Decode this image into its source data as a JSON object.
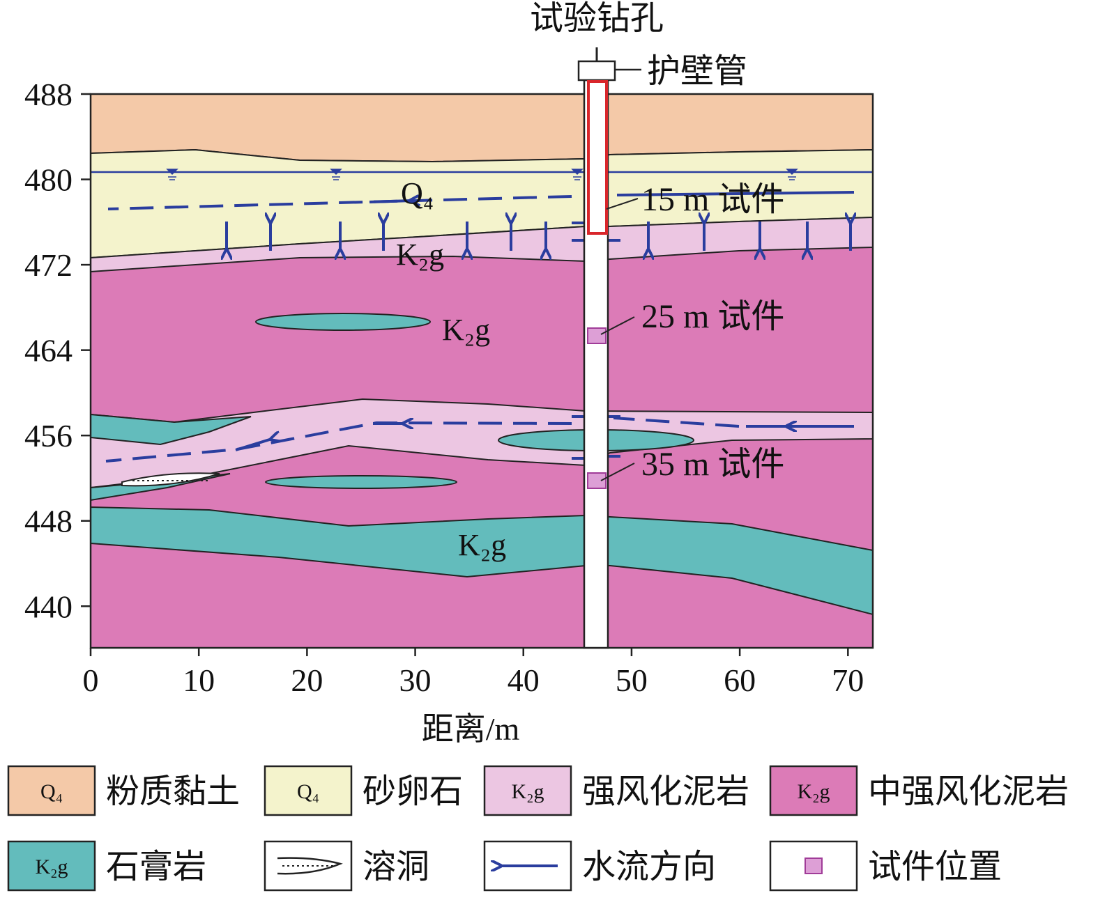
{
  "axes": {
    "xlim": [
      0,
      72.3
    ],
    "ylim": [
      436.1,
      488
    ],
    "xticks": [
      0,
      10,
      20,
      30,
      40,
      50,
      60,
      70
    ],
    "yticks": [
      440,
      448,
      456,
      464,
      472,
      480,
      488
    ],
    "xlabel": "距离/m"
  },
  "borehole": {
    "title": "试验钻孔",
    "casing": "护壁管",
    "samples": [
      "15 m 试件",
      "25 m 试件",
      "35 m 试件"
    ]
  },
  "annotations": [
    "Q₄",
    "K₂g",
    "K₂g",
    "K₂g"
  ],
  "legend": [
    {
      "symbol": "Q₄",
      "label": "粉质黏土"
    },
    {
      "symbol": "Q₄",
      "label": "砂卵石"
    },
    {
      "symbol": "K₂g",
      "label": "强风化泥岩"
    },
    {
      "symbol": "K₂g",
      "label": "中强风化泥岩"
    },
    {
      "symbol": "K₂g",
      "label": "石膏岩"
    },
    {
      "label": "溶洞"
    },
    {
      "label": "水流方向"
    },
    {
      "label": "试件位置"
    }
  ]
}
